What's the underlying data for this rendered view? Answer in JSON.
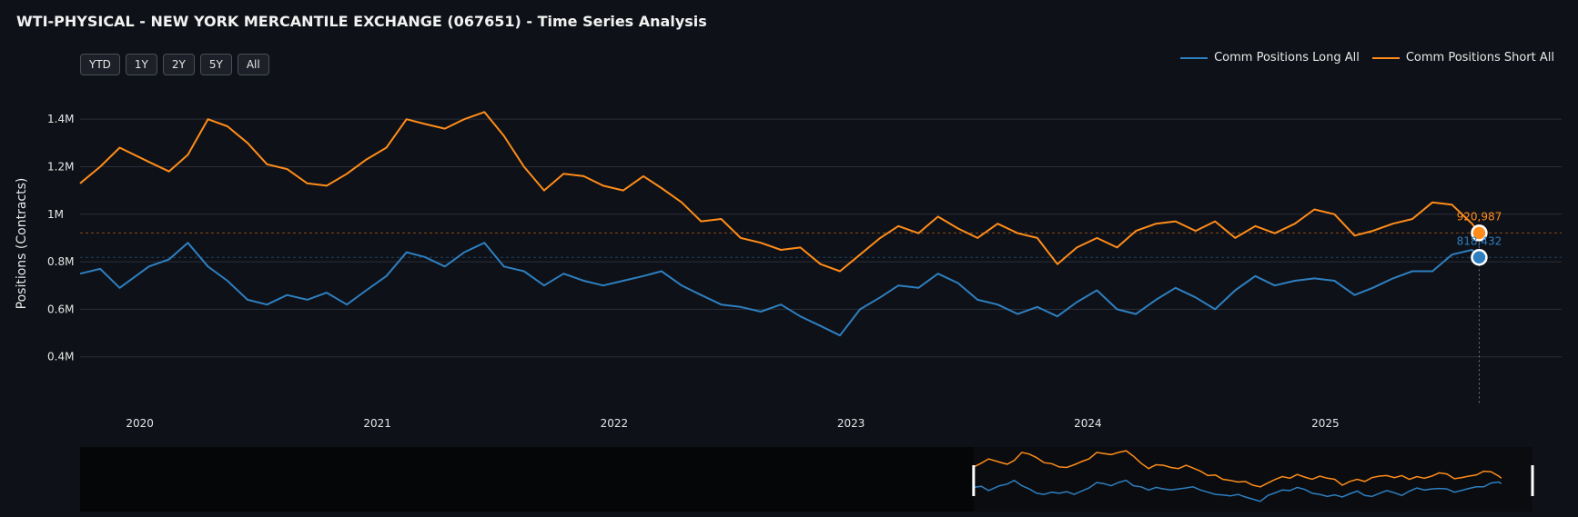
{
  "title": "WTI-PHYSICAL - NEW YORK MERCANTILE EXCHANGE (067651) - Time Series Analysis",
  "range_buttons": [
    "YTD",
    "1Y",
    "2Y",
    "5Y",
    "All"
  ],
  "colors": {
    "long": "#2e7fc0",
    "short": "#ff8c1a",
    "grid": "#2b2f38",
    "background": "#0e1117"
  },
  "chart_data": {
    "type": "line",
    "ylabel": "Positions (Contracts)",
    "xlabel": "",
    "ylim": [
      200000,
      1500000
    ],
    "xlim": [
      "2019-10-01",
      "2025-12-31"
    ],
    "yticks": [
      400000,
      600000,
      800000,
      1000000,
      1200000,
      1400000
    ],
    "ytick_labels": [
      "0.4M",
      "0.6M",
      "0.8M",
      "1M",
      "1.2M",
      "1.4M"
    ],
    "xticks": [
      "2020-01-01",
      "2021-01-01",
      "2022-01-01",
      "2023-01-01",
      "2024-01-01",
      "2025-01-01"
    ],
    "xtick_labels": [
      "2020",
      "2021",
      "2022",
      "2023",
      "2024",
      "2025"
    ],
    "grid": true,
    "legend_position": "top-right",
    "series": [
      {
        "name": "Comm Positions Long All",
        "color": "#2e7fc0",
        "points": [
          [
            "2019-10-01",
            750000
          ],
          [
            "2019-11-01",
            770000
          ],
          [
            "2019-12-01",
            690000
          ],
          [
            "2020-01-15",
            780000
          ],
          [
            "2020-02-15",
            810000
          ],
          [
            "2020-03-15",
            880000
          ],
          [
            "2020-04-15",
            780000
          ],
          [
            "2020-05-15",
            720000
          ],
          [
            "2020-06-15",
            640000
          ],
          [
            "2020-07-15",
            620000
          ],
          [
            "2020-08-15",
            660000
          ],
          [
            "2020-09-15",
            640000
          ],
          [
            "2020-10-15",
            670000
          ],
          [
            "2020-11-15",
            620000
          ],
          [
            "2020-12-15",
            680000
          ],
          [
            "2021-01-15",
            740000
          ],
          [
            "2021-02-15",
            840000
          ],
          [
            "2021-03-15",
            820000
          ],
          [
            "2021-04-15",
            780000
          ],
          [
            "2021-05-15",
            840000
          ],
          [
            "2021-06-15",
            880000
          ],
          [
            "2021-07-15",
            780000
          ],
          [
            "2021-08-15",
            760000
          ],
          [
            "2021-09-15",
            700000
          ],
          [
            "2021-10-15",
            750000
          ],
          [
            "2021-11-15",
            720000
          ],
          [
            "2021-12-15",
            700000
          ],
          [
            "2022-01-15",
            720000
          ],
          [
            "2022-02-15",
            740000
          ],
          [
            "2022-03-15",
            760000
          ],
          [
            "2022-04-15",
            700000
          ],
          [
            "2022-05-15",
            660000
          ],
          [
            "2022-06-15",
            620000
          ],
          [
            "2022-07-15",
            610000
          ],
          [
            "2022-08-15",
            590000
          ],
          [
            "2022-09-15",
            620000
          ],
          [
            "2022-10-15",
            570000
          ],
          [
            "2022-11-15",
            530000
          ],
          [
            "2022-12-15",
            490000
          ],
          [
            "2023-01-15",
            600000
          ],
          [
            "2023-02-15",
            650000
          ],
          [
            "2023-03-15",
            700000
          ],
          [
            "2023-04-15",
            690000
          ],
          [
            "2023-05-15",
            750000
          ],
          [
            "2023-06-15",
            710000
          ],
          [
            "2023-07-15",
            640000
          ],
          [
            "2023-08-15",
            620000
          ],
          [
            "2023-09-15",
            580000
          ],
          [
            "2023-10-15",
            610000
          ],
          [
            "2023-11-15",
            570000
          ],
          [
            "2023-12-15",
            630000
          ],
          [
            "2024-01-15",
            680000
          ],
          [
            "2024-02-15",
            600000
          ],
          [
            "2024-03-15",
            580000
          ],
          [
            "2024-04-15",
            640000
          ],
          [
            "2024-05-15",
            690000
          ],
          [
            "2024-06-15",
            650000
          ],
          [
            "2024-07-15",
            600000
          ],
          [
            "2024-08-15",
            680000
          ],
          [
            "2024-09-15",
            740000
          ],
          [
            "2024-10-15",
            700000
          ],
          [
            "2024-11-15",
            720000
          ],
          [
            "2024-12-15",
            730000
          ],
          [
            "2025-01-15",
            720000
          ],
          [
            "2025-02-15",
            660000
          ],
          [
            "2025-03-15",
            690000
          ],
          [
            "2025-04-15",
            730000
          ],
          [
            "2025-05-15",
            760000
          ],
          [
            "2025-06-15",
            760000
          ],
          [
            "2025-07-15",
            830000
          ],
          [
            "2025-08-15",
            850000
          ],
          [
            "2025-08-26",
            818432
          ]
        ]
      },
      {
        "name": "Comm Positions Short All",
        "color": "#ff8c1a",
        "points": [
          [
            "2019-10-01",
            1130000
          ],
          [
            "2019-11-01",
            1200000
          ],
          [
            "2019-12-01",
            1280000
          ],
          [
            "2020-01-15",
            1220000
          ],
          [
            "2020-02-15",
            1180000
          ],
          [
            "2020-03-15",
            1250000
          ],
          [
            "2020-04-15",
            1400000
          ],
          [
            "2020-05-15",
            1370000
          ],
          [
            "2020-06-15",
            1300000
          ],
          [
            "2020-07-15",
            1210000
          ],
          [
            "2020-08-15",
            1190000
          ],
          [
            "2020-09-15",
            1130000
          ],
          [
            "2020-10-15",
            1120000
          ],
          [
            "2020-11-15",
            1170000
          ],
          [
            "2020-12-15",
            1230000
          ],
          [
            "2021-01-15",
            1280000
          ],
          [
            "2021-02-15",
            1400000
          ],
          [
            "2021-03-15",
            1380000
          ],
          [
            "2021-04-15",
            1360000
          ],
          [
            "2021-05-15",
            1400000
          ],
          [
            "2021-06-15",
            1430000
          ],
          [
            "2021-07-15",
            1330000
          ],
          [
            "2021-08-15",
            1200000
          ],
          [
            "2021-09-15",
            1100000
          ],
          [
            "2021-10-15",
            1170000
          ],
          [
            "2021-11-15",
            1160000
          ],
          [
            "2021-12-15",
            1120000
          ],
          [
            "2022-01-15",
            1100000
          ],
          [
            "2022-02-15",
            1160000
          ],
          [
            "2022-03-15",
            1110000
          ],
          [
            "2022-04-15",
            1050000
          ],
          [
            "2022-05-15",
            970000
          ],
          [
            "2022-06-15",
            980000
          ],
          [
            "2022-07-15",
            900000
          ],
          [
            "2022-08-15",
            880000
          ],
          [
            "2022-09-15",
            850000
          ],
          [
            "2022-10-15",
            860000
          ],
          [
            "2022-11-15",
            790000
          ],
          [
            "2022-12-15",
            760000
          ],
          [
            "2023-01-15",
            830000
          ],
          [
            "2023-02-15",
            900000
          ],
          [
            "2023-03-15",
            950000
          ],
          [
            "2023-04-15",
            920000
          ],
          [
            "2023-05-15",
            990000
          ],
          [
            "2023-06-15",
            940000
          ],
          [
            "2023-07-15",
            900000
          ],
          [
            "2023-08-15",
            960000
          ],
          [
            "2023-09-15",
            920000
          ],
          [
            "2023-10-15",
            900000
          ],
          [
            "2023-11-15",
            790000
          ],
          [
            "2023-12-15",
            860000
          ],
          [
            "2024-01-15",
            900000
          ],
          [
            "2024-02-15",
            860000
          ],
          [
            "2024-03-15",
            930000
          ],
          [
            "2024-04-15",
            960000
          ],
          [
            "2024-05-15",
            970000
          ],
          [
            "2024-06-15",
            930000
          ],
          [
            "2024-07-15",
            970000
          ],
          [
            "2024-08-15",
            900000
          ],
          [
            "2024-09-15",
            950000
          ],
          [
            "2024-10-15",
            920000
          ],
          [
            "2024-11-15",
            960000
          ],
          [
            "2024-12-15",
            1020000
          ],
          [
            "2025-01-15",
            1000000
          ],
          [
            "2025-02-15",
            910000
          ],
          [
            "2025-03-15",
            930000
          ],
          [
            "2025-04-15",
            960000
          ],
          [
            "2025-05-15",
            980000
          ],
          [
            "2025-06-15",
            1050000
          ],
          [
            "2025-07-15",
            1040000
          ],
          [
            "2025-08-15",
            960000
          ],
          [
            "2025-08-26",
            920987
          ]
        ]
      }
    ],
    "latest_labels": {
      "long": "818,432",
      "short": "920,987"
    }
  }
}
